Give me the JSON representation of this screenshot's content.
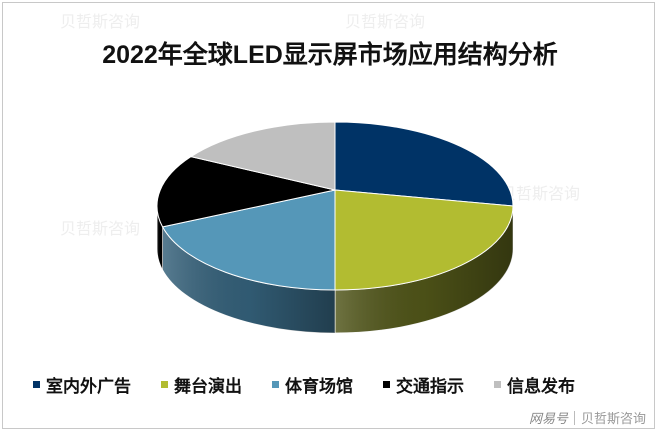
{
  "title": "2022年全球LED显示屏市场应用结构分析",
  "chart_data": {
    "type": "pie",
    "title": "2022年全球LED显示屏市场应用结构分析",
    "style": "3d-pie",
    "categories": [
      "室内外广告",
      "舞台演出",
      "体育场馆",
      "交通指示",
      "信息发布"
    ],
    "values": [
      25,
      25,
      21,
      14,
      15
    ],
    "unit": "%",
    "colors": [
      "#003366",
      "#b2bc31",
      "#5597b8",
      "#000000",
      "#bfbfbf"
    ],
    "side_colors": [
      "#001a33",
      "#4f5418",
      "#335f78",
      "#000000",
      "#808080"
    ],
    "data_labels": false,
    "legend_position": "bottom"
  },
  "legend": {
    "items": [
      {
        "label": "室内外广告",
        "color": "#003366"
      },
      {
        "label": "舞台演出",
        "color": "#b2bc31"
      },
      {
        "label": "体育场馆",
        "color": "#5597b8"
      },
      {
        "label": "交通指示",
        "color": "#000000"
      },
      {
        "label": "信息发布",
        "color": "#bfbfbf"
      }
    ]
  },
  "footer": {
    "platform": "网易号",
    "source": "贝哲斯咨询"
  },
  "watermark": "贝哲斯咨询"
}
